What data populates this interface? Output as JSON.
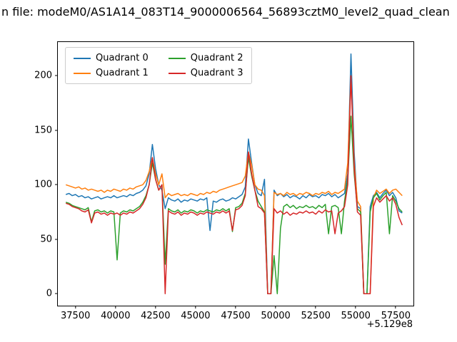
{
  "figure": {
    "title": "n file: modeM0/AS1A14_083T14_9000006564_56893cztM0_level2_quad_clean"
  },
  "chart_data": {
    "type": "line",
    "title": "n file: modeM0/AS1A14_083T14_9000006564_56893cztM0_level2_quad_clean",
    "xlabel": "",
    "ylabel": "",
    "x_offset_text": "+5.129e8",
    "xlim": [
      36400,
      58600
    ],
    "ylim": [
      -11,
      231
    ],
    "xticks": [
      37500,
      40000,
      42500,
      45000,
      47500,
      50000,
      52500,
      55000,
      57500
    ],
    "yticks": [
      0,
      50,
      100,
      150,
      200
    ],
    "grid": false,
    "legend": {
      "position": "upper left",
      "ncol": 2,
      "entries": [
        "Quadrant 0",
        "Quadrant 1",
        "Quadrant 2",
        "Quadrant 3"
      ]
    },
    "x": [
      36900,
      37100,
      37300,
      37500,
      37700,
      37900,
      38100,
      38300,
      38500,
      38700,
      38900,
      39100,
      39300,
      39500,
      39700,
      39900,
      40100,
      40300,
      40500,
      40700,
      40900,
      41100,
      41300,
      41500,
      41700,
      41900,
      42100,
      42300,
      42500,
      42700,
      42900,
      43100,
      43300,
      43500,
      43700,
      43900,
      44100,
      44300,
      44500,
      44700,
      44900,
      45100,
      45300,
      45500,
      45700,
      45900,
      46100,
      46300,
      46500,
      46700,
      46900,
      47100,
      47300,
      47500,
      47700,
      47900,
      48100,
      48300,
      48500,
      48700,
      48900,
      49100,
      49300,
      49500,
      49700,
      49900,
      50100,
      50300,
      50500,
      50700,
      50900,
      51100,
      51300,
      51500,
      51700,
      51900,
      52100,
      52300,
      52500,
      52700,
      52900,
      53100,
      53300,
      53500,
      53700,
      53900,
      54100,
      54300,
      54500,
      54700,
      54900,
      55100,
      55300,
      55500,
      55700,
      55900,
      56100,
      56300,
      56500,
      56700,
      56900,
      57100,
      57300,
      57500,
      57700,
      57900
    ],
    "series": [
      {
        "name": "Quadrant 0",
        "color": "#1f77b4",
        "values": [
          91,
          92,
          90,
          91,
          89,
          90,
          88,
          89,
          87,
          88,
          89,
          87,
          88,
          89,
          88,
          90,
          88,
          89,
          90,
          89,
          91,
          90,
          92,
          93,
          95,
          99,
          110,
          137,
          115,
          100,
          95,
          78,
          88,
          86,
          85,
          87,
          84,
          86,
          85,
          87,
          86,
          85,
          87,
          86,
          88,
          58,
          85,
          84,
          86,
          87,
          85,
          86,
          88,
          87,
          89,
          91,
          98,
          142,
          120,
          100,
          92,
          90,
          105,
          0,
          0,
          95,
          90,
          92,
          89,
          91,
          88,
          90,
          89,
          87,
          90,
          88,
          91,
          89,
          90,
          88,
          91,
          90,
          92,
          89,
          91,
          88,
          90,
          92,
          110,
          220,
          130,
          80,
          78,
          0,
          0,
          80,
          90,
          93,
          88,
          92,
          95,
          90,
          93,
          88,
          76,
          74
        ]
      },
      {
        "name": "Quadrant 1",
        "color": "#ff7f0e",
        "values": [
          100,
          99,
          98,
          97,
          98,
          96,
          97,
          95,
          96,
          95,
          94,
          95,
          93,
          95,
          94,
          96,
          95,
          94,
          96,
          95,
          97,
          96,
          98,
          99,
          100,
          104,
          112,
          125,
          110,
          100,
          110,
          88,
          92,
          90,
          91,
          92,
          90,
          91,
          90,
          92,
          91,
          90,
          92,
          91,
          93,
          92,
          94,
          93,
          95,
          96,
          97,
          98,
          99,
          100,
          101,
          102,
          108,
          130,
          118,
          100,
          96,
          95,
          90,
          0,
          0,
          93,
          91,
          92,
          90,
          93,
          91,
          92,
          90,
          92,
          91,
          93,
          92,
          90,
          92,
          91,
          93,
          92,
          94,
          91,
          93,
          92,
          94,
          96,
          120,
          200,
          120,
          85,
          80,
          0,
          0,
          0,
          88,
          95,
          92,
          94,
          96,
          92,
          95,
          96,
          93,
          90
        ]
      },
      {
        "name": "Quadrant 2",
        "color": "#2ca02c",
        "values": [
          84,
          83,
          81,
          80,
          79,
          78,
          77,
          79,
          66,
          76,
          77,
          75,
          76,
          74,
          76,
          75,
          31,
          74,
          76,
          75,
          77,
          76,
          78,
          80,
          84,
          90,
          100,
          120,
          105,
          95,
          100,
          27,
          78,
          76,
          75,
          77,
          74,
          76,
          75,
          77,
          76,
          74,
          76,
          75,
          77,
          76,
          75,
          77,
          76,
          78,
          76,
          78,
          57,
          79,
          80,
          83,
          92,
          125,
          108,
          95,
          85,
          80,
          75,
          0,
          0,
          35,
          0,
          60,
          80,
          82,
          79,
          81,
          78,
          80,
          79,
          81,
          79,
          80,
          78,
          81,
          79,
          82,
          55,
          80,
          81,
          79,
          55,
          85,
          105,
          163,
          110,
          78,
          75,
          0,
          0,
          75,
          88,
          92,
          86,
          90,
          93,
          55,
          90,
          85,
          78,
          75
        ]
      },
      {
        "name": "Quadrant 3",
        "color": "#d62728",
        "values": [
          83,
          82,
          80,
          79,
          78,
          76,
          75,
          77,
          65,
          74,
          75,
          73,
          74,
          72,
          74,
          73,
          74,
          72,
          74,
          73,
          75,
          74,
          76,
          78,
          82,
          88,
          100,
          125,
          105,
          95,
          100,
          0,
          76,
          74,
          73,
          75,
          72,
          74,
          73,
          75,
          74,
          72,
          74,
          73,
          75,
          74,
          73,
          75,
          74,
          76,
          74,
          76,
          58,
          77,
          78,
          81,
          90,
          130,
          110,
          95,
          80,
          78,
          74,
          0,
          0,
          78,
          74,
          76,
          73,
          75,
          72,
          74,
          73,
          75,
          74,
          76,
          74,
          75,
          73,
          76,
          74,
          77,
          75,
          76,
          55,
          74,
          76,
          80,
          100,
          200,
          115,
          75,
          72,
          0,
          0,
          0,
          80,
          88,
          84,
          87,
          90,
          85,
          88,
          82,
          70,
          63
        ]
      }
    ]
  }
}
